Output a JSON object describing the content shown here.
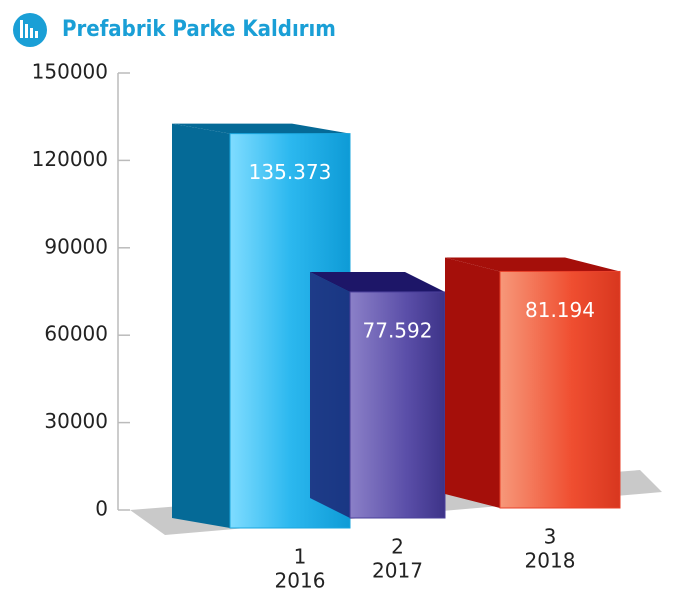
{
  "chart_data": {
    "type": "bar3d",
    "title": "Prefabrik Parke Kaldırım",
    "categories": [
      "1",
      "2",
      "3"
    ],
    "years": [
      "2016",
      "2017",
      "2018"
    ],
    "values": [
      135373,
      77592,
      81194
    ],
    "value_labels": [
      "135.373",
      "77.592",
      "81.194"
    ],
    "colors": [
      "#1aa6de",
      "#4a3f9a",
      "#e8402a"
    ],
    "ylim": [
      0,
      150000
    ],
    "yticks": [
      0,
      30000,
      60000,
      90000,
      120000,
      150000
    ]
  }
}
